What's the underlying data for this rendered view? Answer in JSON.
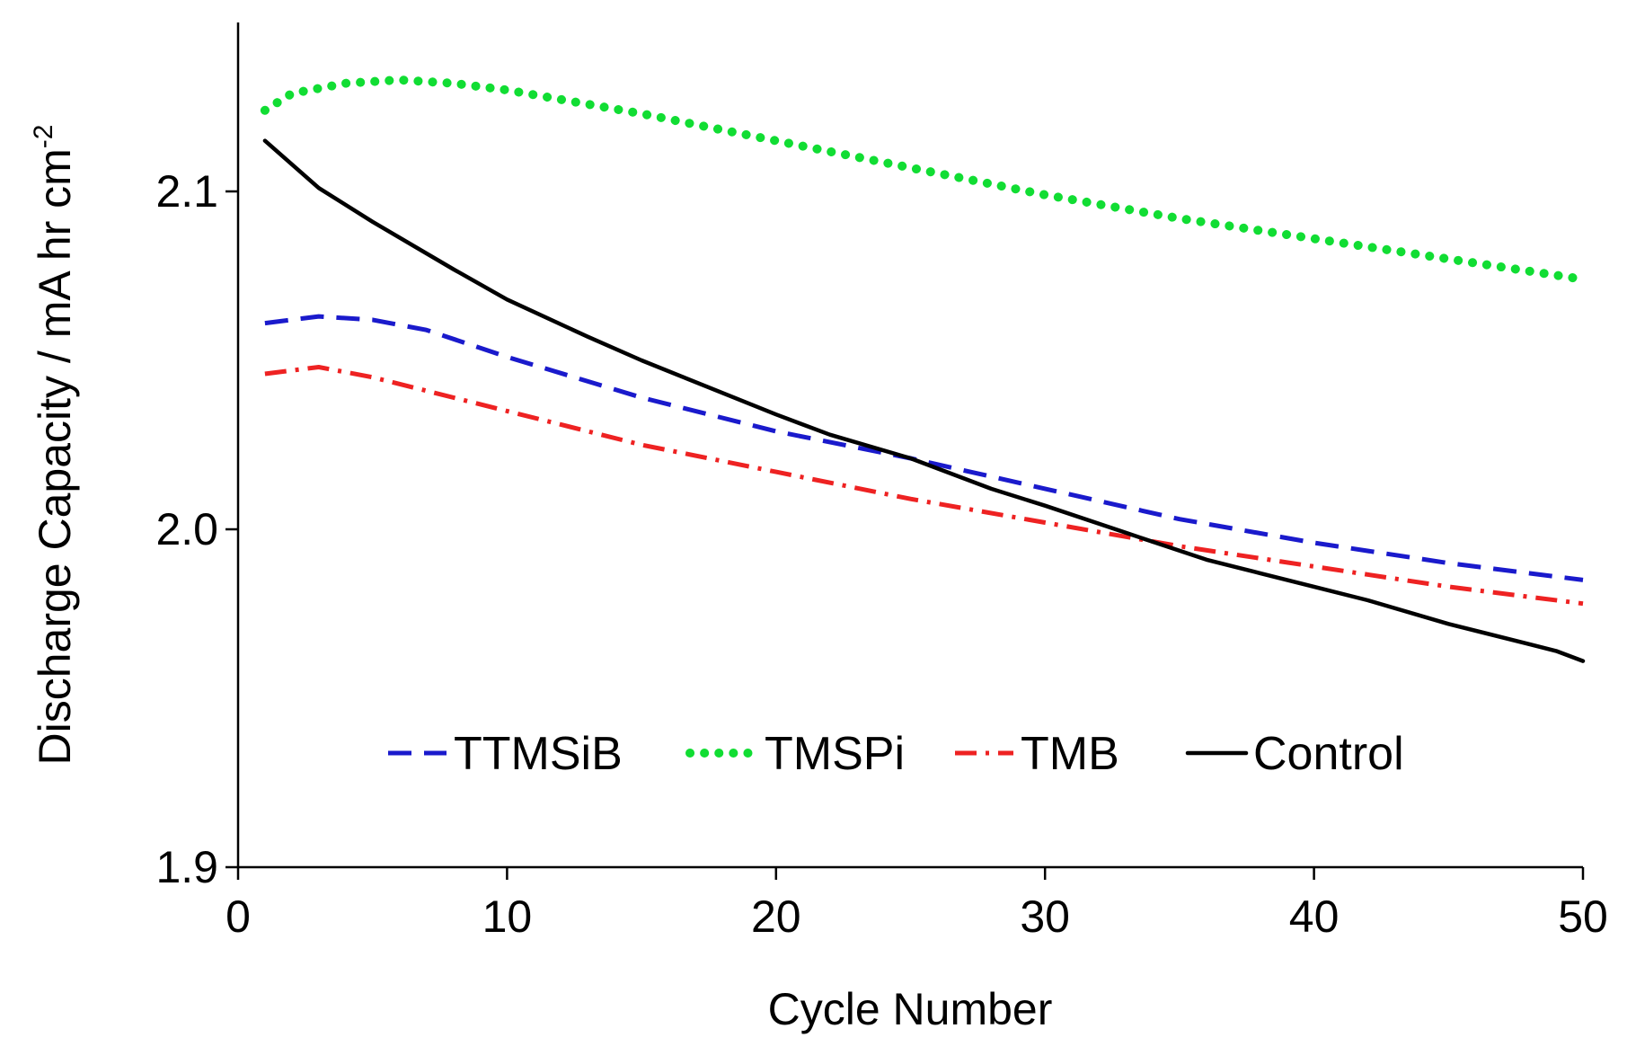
{
  "chart_data": {
    "type": "line",
    "title": "",
    "xlabel": "Cycle Number",
    "ylabel": "Discharge Capacity / mA hr cm",
    "ylabel_superscript": "-2",
    "xlim": [
      0,
      50
    ],
    "ylim": [
      1.9,
      2.15
    ],
    "xticks": [
      0,
      10,
      20,
      30,
      40,
      50
    ],
    "xtick_labels": [
      "0",
      "10",
      "20",
      "30",
      "40",
      "50"
    ],
    "yticks": [
      1.9,
      2.0,
      2.1
    ],
    "ytick_labels": [
      "1.9",
      "2.0",
      "2.1"
    ],
    "grid": false,
    "legend_position": "bottom-center",
    "series": [
      {
        "name": "TTMSiB",
        "color": "#1a1acc",
        "style": "dashed",
        "x": [
          1,
          3,
          5,
          7,
          10,
          15,
          20,
          25,
          30,
          35,
          40,
          45,
          50
        ],
        "values": [
          2.061,
          2.063,
          2.062,
          2.059,
          2.051,
          2.039,
          2.029,
          2.021,
          2.012,
          2.003,
          1.996,
          1.99,
          1.985
        ]
      },
      {
        "name": "TMSPi",
        "color": "#11dd33",
        "style": "dotted",
        "x": [
          1,
          2,
          4,
          6,
          8,
          10,
          15,
          20,
          25,
          30,
          35,
          40,
          45,
          50
        ],
        "values": [
          2.124,
          2.129,
          2.132,
          2.133,
          2.132,
          2.13,
          2.123,
          2.115,
          2.107,
          2.099,
          2.092,
          2.086,
          2.08,
          2.074
        ]
      },
      {
        "name": "TMB",
        "color": "#ee2222",
        "style": "dash-dot",
        "x": [
          1,
          3,
          5,
          10,
          15,
          20,
          25,
          30,
          35,
          40,
          45,
          50
        ],
        "values": [
          2.046,
          2.048,
          2.045,
          2.035,
          2.025,
          2.017,
          2.009,
          2.002,
          1.995,
          1.989,
          1.983,
          1.978
        ]
      },
      {
        "name": "Control",
        "color": "#000000",
        "style": "solid",
        "x": [
          1,
          3,
          5,
          8,
          10,
          13,
          15,
          20,
          22,
          25,
          28,
          30,
          33,
          36,
          38,
          40,
          42,
          45,
          48,
          49,
          50
        ],
        "values": [
          2.115,
          2.101,
          2.091,
          2.077,
          2.068,
          2.057,
          2.05,
          2.034,
          2.028,
          2.021,
          2.012,
          2.007,
          1.999,
          1.991,
          1.987,
          1.983,
          1.979,
          1.972,
          1.966,
          1.964,
          1.961
        ]
      }
    ]
  }
}
